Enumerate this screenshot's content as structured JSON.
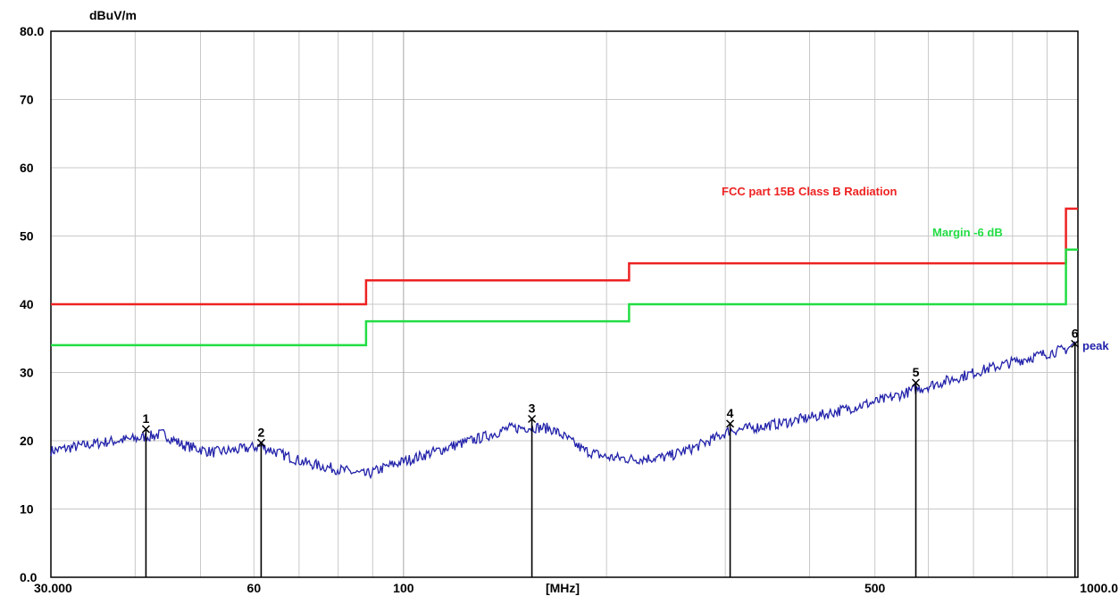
{
  "chart_data": {
    "type": "line",
    "title": "",
    "ylabel": "dBuV/m",
    "xlabel": "[MHz]",
    "x_scale": "log",
    "xlim": [
      30,
      1000
    ],
    "ylim": [
      0,
      80
    ],
    "y_ticks": [
      {
        "v": 0,
        "label": "0.0"
      },
      {
        "v": 10,
        "label": "10"
      },
      {
        "v": 20,
        "label": "20"
      },
      {
        "v": 30,
        "label": "30"
      },
      {
        "v": 40,
        "label": "40"
      },
      {
        "v": 50,
        "label": "50"
      },
      {
        "v": 60,
        "label": "60"
      },
      {
        "v": 70,
        "label": "70"
      },
      {
        "v": 80,
        "label": "80.0"
      }
    ],
    "x_ticks": [
      {
        "v": 30,
        "label": "30.000"
      },
      {
        "v": 60,
        "label": "60"
      },
      {
        "v": 100,
        "label": "100"
      },
      {
        "v": 500,
        "label": "500"
      },
      {
        "v": 1000,
        "label": "1000.0"
      }
    ],
    "grid": true,
    "colors": {
      "limit": "#ee2222",
      "margin": "#22dd44",
      "trace": "#2222aa",
      "marker": "#000000",
      "grid": "#c8c8c8"
    },
    "limit_line": {
      "name": "FCC part 15B Class B Radiation",
      "points": [
        [
          30,
          40
        ],
        [
          88,
          40
        ],
        [
          88,
          43.5
        ],
        [
          216,
          43.5
        ],
        [
          216,
          46
        ],
        [
          960,
          46
        ],
        [
          960,
          54
        ],
        [
          1000,
          54
        ]
      ]
    },
    "margin_line": {
      "name": "Margin -6 dB",
      "points": [
        [
          30,
          34
        ],
        [
          88,
          34
        ],
        [
          88,
          37.5
        ],
        [
          216,
          37.5
        ],
        [
          216,
          40
        ],
        [
          960,
          40
        ],
        [
          960,
          48
        ],
        [
          1000,
          48
        ]
      ]
    },
    "trace": {
      "name": "peak",
      "points": [
        [
          30,
          18.5
        ],
        [
          33,
          19.2
        ],
        [
          36,
          19.8
        ],
        [
          40,
          20.3
        ],
        [
          44,
          21.0
        ],
        [
          47,
          19.4
        ],
        [
          52,
          18.3
        ],
        [
          56,
          18.6
        ],
        [
          61.5,
          19.2
        ],
        [
          66,
          18.0
        ],
        [
          72,
          16.7
        ],
        [
          80,
          15.8
        ],
        [
          88,
          15.0
        ],
        [
          95,
          16.3
        ],
        [
          105,
          17.6
        ],
        [
          118,
          19.2
        ],
        [
          132,
          20.6
        ],
        [
          143,
          21.8
        ],
        [
          155,
          22.0
        ],
        [
          165,
          21.8
        ],
        [
          172,
          20.8
        ],
        [
          185,
          18.6
        ],
        [
          200,
          17.6
        ],
        [
          220,
          17.3
        ],
        [
          245,
          17.6
        ],
        [
          270,
          19.0
        ],
        [
          290,
          20.4
        ],
        [
          305,
          21.5
        ],
        [
          325,
          21.8
        ],
        [
          360,
          22.5
        ],
        [
          410,
          23.6
        ],
        [
          460,
          24.8
        ],
        [
          520,
          26.1
        ],
        [
          575,
          27.5
        ],
        [
          640,
          28.8
        ],
        [
          720,
          30.3
        ],
        [
          820,
          31.8
        ],
        [
          900,
          32.8
        ],
        [
          960,
          33.4
        ],
        [
          990,
          34.2
        ]
      ]
    },
    "markers": [
      {
        "label": "1",
        "f": 41.5,
        "level": 21.7
      },
      {
        "label": "2",
        "f": 61.5,
        "level": 19.7
      },
      {
        "label": "3",
        "f": 155,
        "level": 23.2
      },
      {
        "label": "4",
        "f": 305,
        "level": 22.5
      },
      {
        "label": "5",
        "f": 575,
        "level": 28.5
      },
      {
        "label": "6",
        "f": 990,
        "level": 34.2
      }
    ]
  }
}
